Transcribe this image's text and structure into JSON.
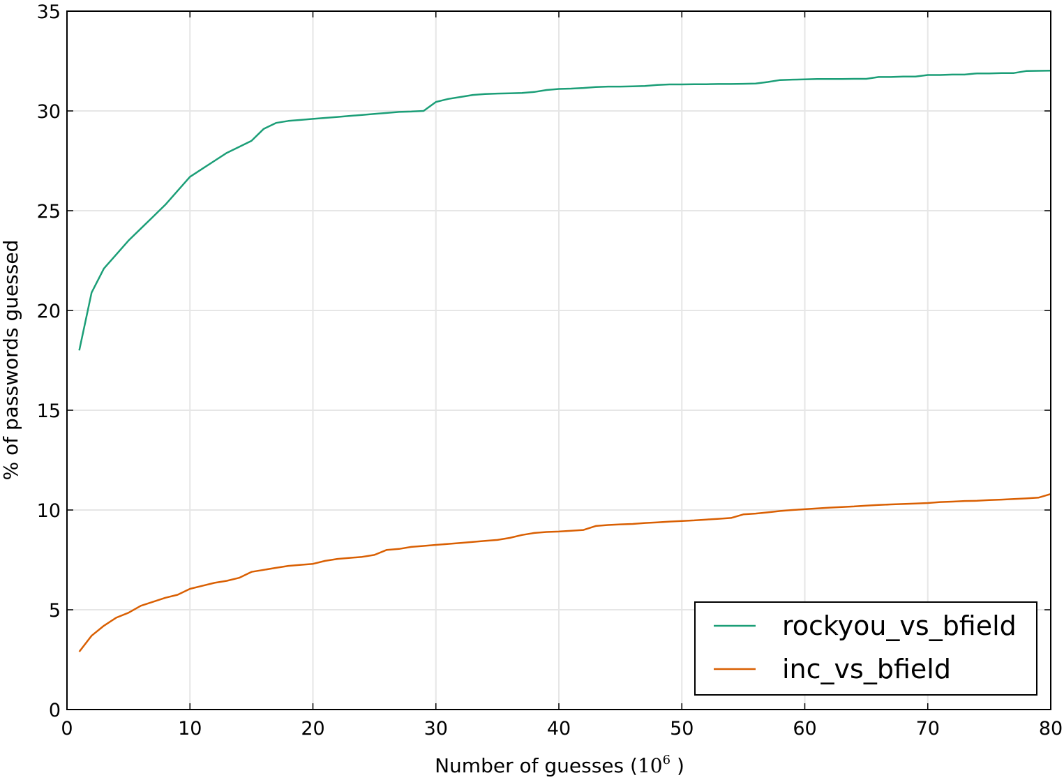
{
  "chart_data": {
    "type": "line",
    "title": "",
    "xlabel": "Number of guesses",
    "xlabel_unit": "(10^6 )",
    "xlabel_base": "10",
    "xlabel_exp": "6",
    "ylabel": "% of passwords guessed",
    "xlim": [
      0,
      80
    ],
    "ylim": [
      0,
      35
    ],
    "xticks": [
      0,
      10,
      20,
      30,
      40,
      50,
      60,
      70,
      80
    ],
    "yticks": [
      0,
      5,
      10,
      15,
      20,
      25,
      30,
      35
    ],
    "grid": true,
    "legend_position": "bottom-right",
    "x": [
      1,
      2,
      3,
      4,
      5,
      6,
      7,
      8,
      9,
      10,
      11,
      12,
      13,
      14,
      15,
      16,
      17,
      18,
      19,
      20,
      21,
      22,
      23,
      24,
      25,
      26,
      27,
      28,
      29,
      30,
      31,
      32,
      33,
      34,
      35,
      36,
      37,
      38,
      39,
      40,
      41,
      42,
      43,
      44,
      45,
      46,
      47,
      48,
      49,
      50,
      51,
      52,
      53,
      54,
      55,
      56,
      57,
      58,
      59,
      60,
      61,
      62,
      63,
      64,
      65,
      66,
      67,
      68,
      69,
      70,
      71,
      72,
      73,
      74,
      75,
      76,
      77,
      78,
      79,
      80
    ],
    "series": [
      {
        "name": "rockyou_vs_bfield",
        "color": "#1b9e77",
        "values": [
          18.0,
          20.9,
          22.1,
          22.8,
          23.5,
          24.1,
          24.7,
          25.3,
          26.0,
          26.7,
          27.1,
          27.5,
          27.9,
          28.2,
          28.5,
          29.1,
          29.4,
          29.5,
          29.55,
          29.6,
          29.65,
          29.7,
          29.75,
          29.8,
          29.85,
          29.9,
          29.95,
          29.97,
          30.0,
          30.45,
          30.6,
          30.7,
          30.8,
          30.85,
          30.87,
          30.88,
          30.9,
          30.95,
          31.05,
          31.1,
          31.12,
          31.15,
          31.2,
          31.22,
          31.22,
          31.23,
          31.25,
          31.3,
          31.33,
          31.33,
          31.34,
          31.34,
          31.35,
          31.35,
          31.36,
          31.37,
          31.45,
          31.55,
          31.57,
          31.58,
          31.6,
          31.6,
          31.6,
          31.61,
          31.61,
          31.7,
          31.7,
          31.72,
          31.72,
          31.8,
          31.8,
          31.82,
          31.82,
          31.88,
          31.88,
          31.9,
          31.9,
          32.0,
          32.01,
          32.02
        ]
      },
      {
        "name": "inc_vs_bfield",
        "color": "#d95f02",
        "values": [
          2.9,
          3.7,
          4.2,
          4.6,
          4.85,
          5.2,
          5.4,
          5.6,
          5.75,
          6.05,
          6.2,
          6.35,
          6.45,
          6.6,
          6.9,
          7.0,
          7.1,
          7.2,
          7.25,
          7.3,
          7.45,
          7.55,
          7.6,
          7.65,
          7.75,
          8.0,
          8.05,
          8.15,
          8.2,
          8.25,
          8.3,
          8.35,
          8.4,
          8.45,
          8.5,
          8.6,
          8.75,
          8.85,
          8.9,
          8.92,
          8.96,
          9.0,
          9.2,
          9.25,
          9.28,
          9.3,
          9.35,
          9.38,
          9.42,
          9.45,
          9.48,
          9.52,
          9.56,
          9.6,
          9.78,
          9.82,
          9.88,
          9.95,
          10.0,
          10.04,
          10.08,
          10.12,
          10.15,
          10.18,
          10.22,
          10.25,
          10.28,
          10.3,
          10.32,
          10.35,
          10.4,
          10.42,
          10.45,
          10.46,
          10.5,
          10.52,
          10.55,
          10.58,
          10.62,
          10.8
        ]
      }
    ]
  }
}
